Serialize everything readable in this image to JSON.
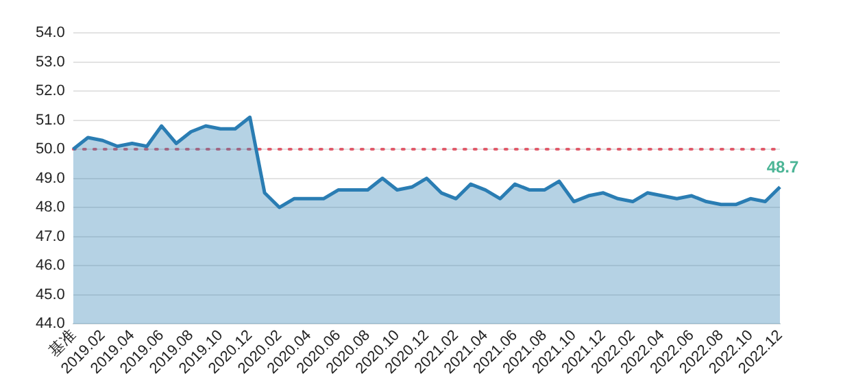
{
  "chart_data": {
    "type": "area",
    "categories": [
      "基准",
      null,
      "2019.02",
      null,
      "2019.04",
      null,
      "2019.06",
      null,
      "2019.08",
      null,
      "2019.10",
      null,
      "2020.12",
      null,
      "2020.02",
      null,
      "2020.04",
      null,
      "2020.06",
      null,
      "2020.08",
      null,
      "2020.10",
      null,
      "2020.12",
      null,
      "2021.02",
      null,
      "2021.04",
      null,
      "2021.06",
      null,
      "2021.08",
      null,
      "2021.10",
      null,
      "2021.12",
      null,
      "2022.02",
      null,
      "2022.04",
      null,
      "2022.06",
      null,
      "2022.08",
      null,
      "2022.10",
      null,
      "2022.12"
    ],
    "series": [
      {
        "color": "#2a7db3",
        "values": [
          50.0,
          50.4,
          50.3,
          50.1,
          50.2,
          50.1,
          50.8,
          50.2,
          50.6,
          50.8,
          50.7,
          50.7,
          51.1,
          48.5,
          48.0,
          48.3,
          48.3,
          48.3,
          48.6,
          48.6,
          48.6,
          49.0,
          48.6,
          48.7,
          49.0,
          48.5,
          48.3,
          48.8,
          48.6,
          48.3,
          48.8,
          48.6,
          48.6,
          48.9,
          48.2,
          48.4,
          48.5,
          48.3,
          48.2,
          48.5,
          48.4,
          48.3,
          48.4,
          48.2,
          48.1,
          48.1,
          48.3,
          48.2,
          48.7
        ],
        "value_labels": [
          null,
          null,
          null,
          null,
          null,
          null,
          null,
          null,
          null,
          null,
          null,
          null,
          null,
          null,
          null,
          null,
          null,
          null,
          null,
          null,
          null,
          null,
          null,
          null,
          null,
          null,
          null,
          null,
          null,
          null,
          null,
          null,
          null,
          null,
          null,
          null,
          null,
          null,
          null,
          null,
          null,
          null,
          null,
          null,
          null,
          null,
          null,
          null,
          "48.7"
        ]
      }
    ],
    "ylim": [
      44,
      54
    ],
    "yticks": [
      {
        "value": 44,
        "label": "44.0"
      },
      {
        "value": 45,
        "label": "45.0"
      },
      {
        "value": 46,
        "label": "46.0"
      },
      {
        "value": 47,
        "label": "47.0"
      },
      {
        "value": 48,
        "label": "48.0"
      },
      {
        "value": 49,
        "label": "49.0"
      },
      {
        "value": 50,
        "label": "50.0"
      },
      {
        "value": 51,
        "label": "51.0"
      },
      {
        "value": 52,
        "label": "52.0"
      },
      {
        "value": 53,
        "label": "53.0"
      },
      {
        "value": 54,
        "label": "54.0"
      }
    ],
    "ref_lines": [
      {
        "axis": "y",
        "value": 50,
        "color": "#e05a6a",
        "line_style": "dotted"
      }
    ],
    "grid": "y",
    "legend": false,
    "marker": "none",
    "line_style": "solid"
  }
}
